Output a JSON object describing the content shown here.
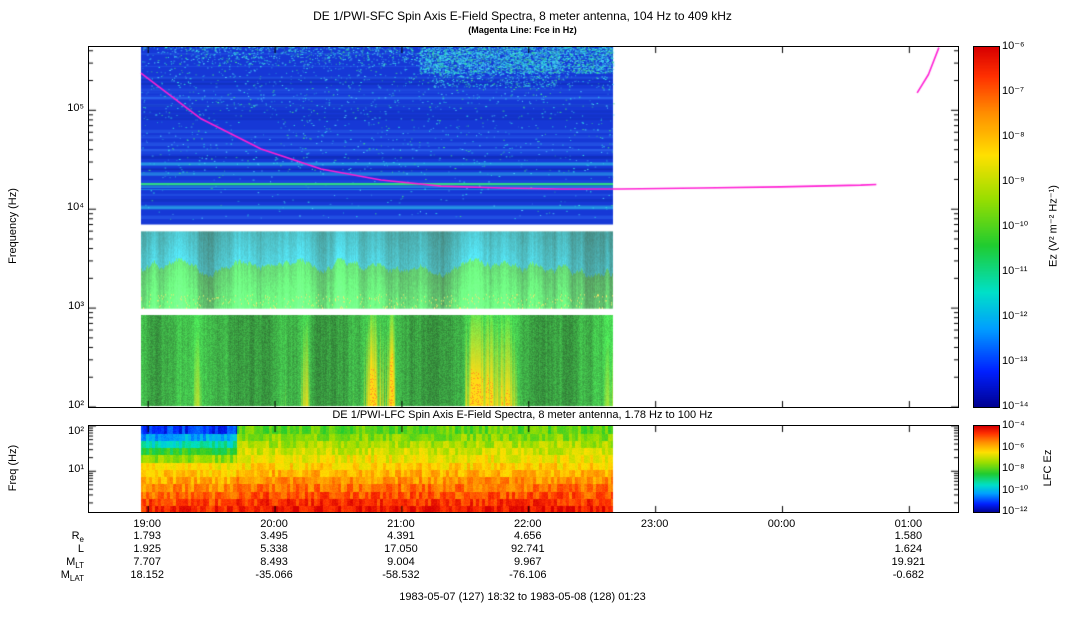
{
  "figure": {
    "footer_time_range": "1983-05-07 (127) 18:32 to 1983-05-08 (128) 01:23"
  },
  "chart_data": [
    {
      "type": "heatmap",
      "name": "sfc-spectrogram",
      "title": "DE 1/PWI-SFC  Spin Axis E-Field Spectra, 8 meter antenna, 104 Hz to 409 kHz",
      "subtitle": "(Magenta Line: Fce in Hz)",
      "ylabel": "Frequency (Hz)",
      "yscale": "log",
      "ylim_hz": [
        100,
        437000
      ],
      "ytick_labels": [
        "10²",
        "10³",
        "10⁴",
        "10⁵"
      ],
      "ytick_values_hz": [
        100,
        1000,
        10000,
        100000
      ],
      "time_start": "18:32",
      "time_end": "01:23",
      "total_minutes": 411,
      "xtick_labels": [
        "19:00",
        "20:00",
        "21:00",
        "22:00",
        "23:00",
        "00:00",
        "01:00"
      ],
      "xtick_minutes_from_start": [
        28,
        88,
        148,
        208,
        268,
        328,
        388
      ],
      "data_extent_frac": [
        0.0598,
        0.603
      ],
      "receiver_bands_hz": [
        [
          104,
          1000
        ],
        [
          1000,
          7000
        ],
        [
          7000,
          437000
        ]
      ],
      "spectral_features": {
        "narrowband_line_hz": 18000,
        "hiss_band_hz": [
          1000,
          7000
        ],
        "intense_low_band_hz": [
          104,
          1000
        ]
      },
      "fce_line": {
        "legend": "Magenta Line: Fce in Hz",
        "points_frac_hz": [
          [
            0.0598,
            238000
          ],
          [
            0.129,
            82000
          ],
          [
            0.198,
            40600
          ],
          [
            0.267,
            25500
          ],
          [
            0.336,
            19700
          ],
          [
            0.405,
            17100
          ],
          [
            0.474,
            16400
          ],
          [
            0.543,
            16000
          ],
          [
            0.612,
            16000
          ],
          [
            0.704,
            16400
          ],
          [
            0.796,
            16800
          ],
          [
            0.888,
            17500
          ],
          [
            0.906,
            17800
          ]
        ],
        "right_segment_frac_hz": [
          [
            0.953,
            150000
          ],
          [
            0.966,
            230000
          ],
          [
            0.978,
            430000
          ]
        ]
      },
      "colorbar": {
        "label": "Ez (V² m⁻² Hz⁻¹)",
        "tick_labels": [
          "10⁻⁶",
          "10⁻⁷",
          "10⁻⁸",
          "10⁻⁹",
          "10⁻¹⁰",
          "10⁻¹¹",
          "10⁻¹²",
          "10⁻¹³",
          "10⁻¹⁴"
        ],
        "range_log10": [
          -6,
          -14
        ]
      }
    },
    {
      "type": "heatmap",
      "name": "lfc-spectrogram",
      "title": "DE 1/PWI-LFC  Spin Axis E-Field Spectra, 8 meter antenna, 1.78 Hz to 100 Hz",
      "ylabel": "Freq (Hz)",
      "yscale": "log",
      "ylim_hz": [
        1.78,
        100
      ],
      "ytick_labels": [
        "10¹",
        "10²"
      ],
      "ytick_values_hz": [
        10,
        100
      ],
      "data_extent_frac": [
        0.0598,
        0.603
      ],
      "colorbar": {
        "label": "LFC Ez",
        "tick_labels": [
          "10⁻⁴",
          "10⁻⁶",
          "10⁻⁸",
          "10⁻¹⁰",
          "10⁻¹²"
        ],
        "range_log10": [
          -4,
          -12
        ]
      }
    }
  ],
  "ephemeris": {
    "row_labels": [
      {
        "main": "R",
        "sub": "e"
      },
      {
        "main": "L",
        "sub": ""
      },
      {
        "main": "M",
        "sub": "LT"
      },
      {
        "main": "M",
        "sub": "LAT"
      }
    ],
    "columns": [
      "19:00",
      "20:00",
      "21:00",
      "22:00",
      "23:00",
      "00:00",
      "01:00"
    ],
    "rows": [
      [
        "1.793",
        "3.495",
        "4.391",
        "4.656",
        "",
        "",
        "1.580"
      ],
      [
        "1.925",
        "5.338",
        "17.050",
        "92.741",
        "",
        "",
        "1.624"
      ],
      [
        "7.707",
        "8.493",
        "9.004",
        "9.967",
        "",
        "",
        "19.921"
      ],
      [
        "18.152",
        "-35.066",
        "-58.532",
        "-76.106",
        "",
        "",
        "-0.682"
      ]
    ]
  },
  "colors": {
    "background": "#ffffff",
    "frame": "#000000",
    "fce_line": "#ff1fd4",
    "narrowband_line": "#2fd986",
    "sfc_base_blue": "#1638d6",
    "colormap": [
      [
        0.0,
        "#000090"
      ],
      [
        0.1,
        "#0020ff"
      ],
      [
        0.22,
        "#00a0ff"
      ],
      [
        0.32,
        "#00e0c8"
      ],
      [
        0.45,
        "#20cc30"
      ],
      [
        0.58,
        "#9ade00"
      ],
      [
        0.7,
        "#ffe000"
      ],
      [
        0.82,
        "#ff8c00"
      ],
      [
        0.92,
        "#ff3000"
      ],
      [
        1.0,
        "#d80000"
      ]
    ]
  }
}
